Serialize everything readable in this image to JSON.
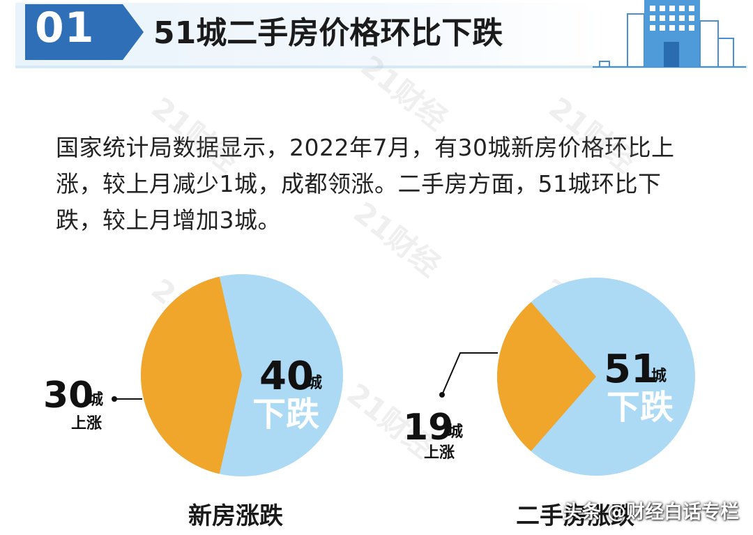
{
  "header": {
    "badge_number": "01",
    "title": "51城二手房价格环比下跌"
  },
  "description": "国家统计局数据显示，2022年7月，有30城新房价格环比上涨，较上月减少1城，成都领涨。二手房方面，51城环比下跌，较上月增加3城。",
  "watermark_text": "21财经",
  "colors": {
    "badge_blue": "#2f6fb8",
    "rise_orange": "#efa62a",
    "fall_blue": "#acd9f4",
    "fall_text": "#ffffff",
    "label_text": "#111111"
  },
  "chart_data": [
    {
      "type": "pie",
      "title": "新房涨跌",
      "slices": [
        {
          "name": "上涨",
          "value": 30,
          "unit": "城",
          "color": "#efa62a"
        },
        {
          "name": "下跌",
          "value": 40,
          "unit": "城",
          "color": "#acd9f4"
        }
      ]
    },
    {
      "type": "pie",
      "title": "二手房涨跌",
      "slices": [
        {
          "name": "上涨",
          "value": 19,
          "unit": "城",
          "color": "#efa62a"
        },
        {
          "name": "下跌",
          "value": 51,
          "unit": "城",
          "color": "#acd9f4"
        }
      ]
    }
  ],
  "footer": {
    "source": "头条 @财经白话专栏"
  }
}
